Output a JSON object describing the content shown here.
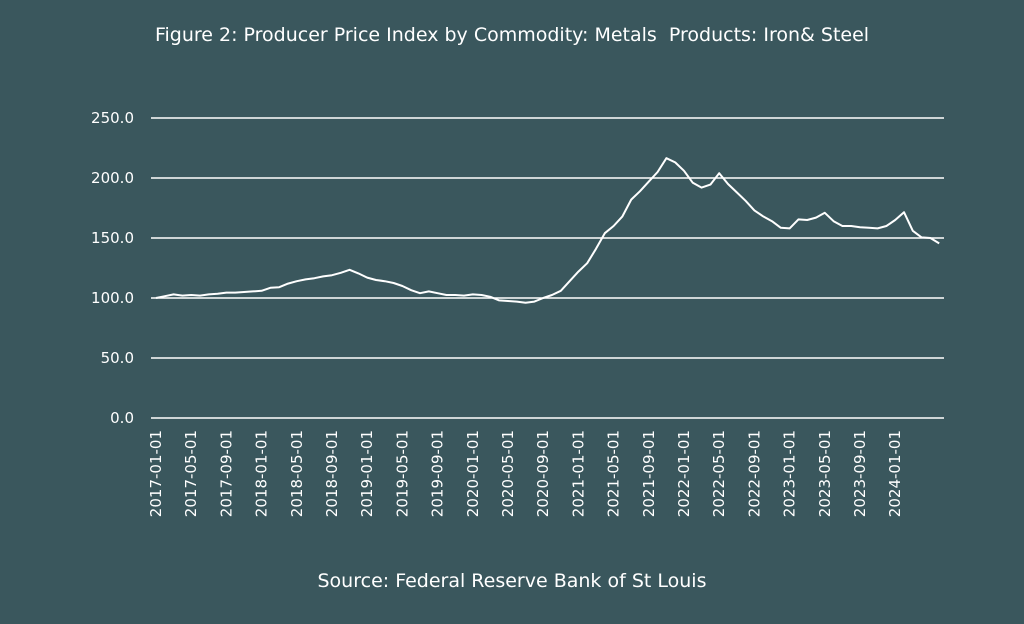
{
  "chart_data": {
    "type": "line",
    "title": "Figure 2: Producer Price Index by Commodity: Metals  Products: Iron& Steel",
    "source": "Source: Federal Reserve Bank of St Louis",
    "xlabel": "",
    "ylabel": "",
    "ylim": [
      0,
      250
    ],
    "y_ticks": [
      "0.0",
      "50.0",
      "100.0",
      "150.0",
      "200.0",
      "250.0"
    ],
    "x_ticks": [
      "2017-01-01",
      "2017-05-01",
      "2017-09-01",
      "2018-01-01",
      "2018-05-01",
      "2018-09-01",
      "2019-01-01",
      "2019-05-01",
      "2019-09-01",
      "2020-01-01",
      "2020-05-01",
      "2020-09-01",
      "2021-01-01",
      "2021-05-01",
      "2021-09-01",
      "2022-01-01",
      "2022-05-01",
      "2022-09-01",
      "2023-01-01",
      "2023-05-01",
      "2023-09-01",
      "2024-01-01"
    ],
    "grid": true,
    "colors": {
      "background": "#3a575d",
      "line": "#ffffff",
      "grid": "#ffffff"
    },
    "series": [
      {
        "x": [
          "2017-01-01",
          "2017-02-01",
          "2017-03-01",
          "2017-04-01",
          "2017-05-01",
          "2017-06-01",
          "2017-07-01",
          "2017-08-01",
          "2017-09-01",
          "2017-10-01",
          "2017-11-01",
          "2017-12-01",
          "2018-01-01",
          "2018-02-01",
          "2018-03-01",
          "2018-04-01",
          "2018-05-01",
          "2018-06-01",
          "2018-07-01",
          "2018-08-01",
          "2018-09-01",
          "2018-10-01",
          "2018-11-01",
          "2018-12-01",
          "2019-01-01",
          "2019-02-01",
          "2019-03-01",
          "2019-04-01",
          "2019-05-01",
          "2019-06-01",
          "2019-07-01",
          "2019-08-01",
          "2019-09-01",
          "2019-10-01",
          "2019-11-01",
          "2019-12-01",
          "2020-01-01",
          "2020-02-01",
          "2020-03-01",
          "2020-04-01",
          "2020-05-01",
          "2020-06-01",
          "2020-07-01",
          "2020-08-01",
          "2020-09-01",
          "2020-10-01",
          "2020-11-01",
          "2020-12-01",
          "2021-01-01",
          "2021-02-01",
          "2021-03-01",
          "2021-04-01",
          "2021-05-01",
          "2021-06-01",
          "2021-07-01",
          "2021-08-01",
          "2021-09-01",
          "2021-10-01",
          "2021-11-01",
          "2021-12-01",
          "2022-01-01",
          "2022-02-01",
          "2022-03-01",
          "2022-04-01",
          "2022-05-01",
          "2022-06-01",
          "2022-07-01",
          "2022-08-01",
          "2022-09-01",
          "2022-10-01",
          "2022-11-01",
          "2022-12-01",
          "2023-01-01",
          "2023-02-01",
          "2023-03-01",
          "2023-04-01",
          "2023-05-01",
          "2023-06-01",
          "2023-07-01",
          "2023-08-01",
          "2023-09-01",
          "2023-10-01",
          "2023-11-01",
          "2023-12-01",
          "2024-01-01",
          "2024-02-01",
          "2024-03-01",
          "2024-04-01",
          "2024-05-01",
          "2024-06-01"
        ],
        "values": [
          100.0,
          101.5,
          103.0,
          102.0,
          102.5,
          102.0,
          103.0,
          103.5,
          104.5,
          104.5,
          105.0,
          105.5,
          106.0,
          108.5,
          109.0,
          112.0,
          114.0,
          115.5,
          116.5,
          118.0,
          119.0,
          121.0,
          123.5,
          120.5,
          117.0,
          115.0,
          114.0,
          112.5,
          110.0,
          106.5,
          104.0,
          105.5,
          104.0,
          102.5,
          102.5,
          102.0,
          103.0,
          102.5,
          101.0,
          98.0,
          97.5,
          97.0,
          96.0,
          97.0,
          100.0,
          102.5,
          106.0,
          114.0,
          122.0,
          129.0,
          141.0,
          154.0,
          160.0,
          168.0,
          182.0,
          189.0,
          197.0,
          205.0,
          216.5,
          213.0,
          206.0,
          196.0,
          192.0,
          194.5,
          204.0,
          195.0,
          188.0,
          181.0,
          173.0,
          168.0,
          164.0,
          158.5,
          158.0,
          165.5,
          165.0,
          167.0,
          171.0,
          164.0,
          160.0,
          160.0,
          159.0,
          158.5,
          158.0,
          160.0,
          165.0,
          171.5,
          156.0,
          150.5,
          150.0,
          145.5
        ]
      }
    ]
  }
}
